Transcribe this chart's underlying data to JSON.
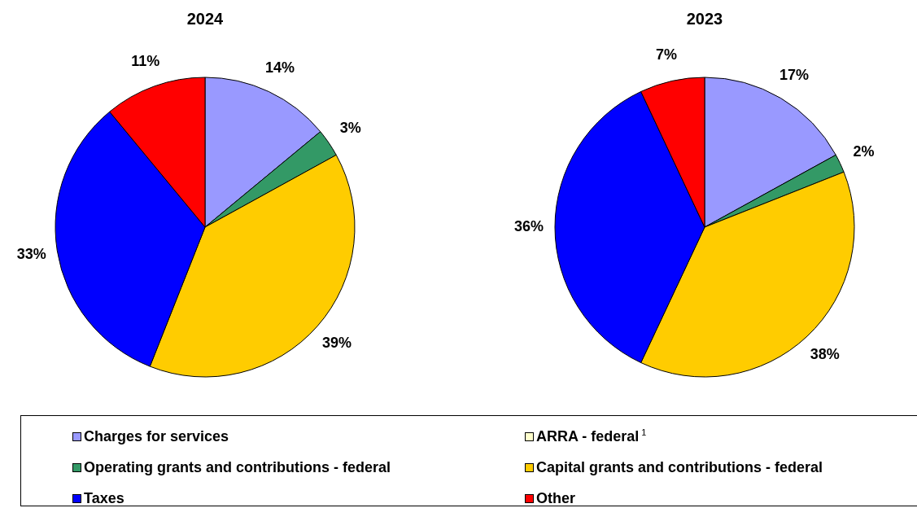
{
  "chart_data": [
    {
      "type": "pie",
      "title": "2024",
      "categories": [
        "Charges for services",
        "ARRA - federal$^{1}$",
        "Operating grants and contributions - federal",
        "Capital grants and contributions - federal",
        "Taxes",
        "Other"
      ],
      "values": [
        14,
        0,
        3,
        39,
        33,
        11
      ],
      "colors": [
        "#9999ff",
        "#ffffcc",
        "#339966",
        "#ffcc00",
        "#0000ff",
        "#ff0000"
      ],
      "value_labels": [
        "14%",
        null,
        "3%",
        "39%",
        "33%",
        "11%"
      ],
      "legend": "bottom"
    },
    {
      "type": "pie",
      "title": "2023",
      "categories": [
        null,
        null,
        null,
        null,
        null,
        null
      ],
      "values": [
        17,
        0,
        2,
        38,
        36,
        7
      ],
      "colors": [
        "#9999ff",
        "#ffffcc",
        "#339966",
        "#ffcc00",
        "#0000ff",
        "#ff0000"
      ],
      "value_labels": [
        "17%",
        null,
        "2%",
        "38%",
        "36%",
        "7%"
      ]
    }
  ]
}
